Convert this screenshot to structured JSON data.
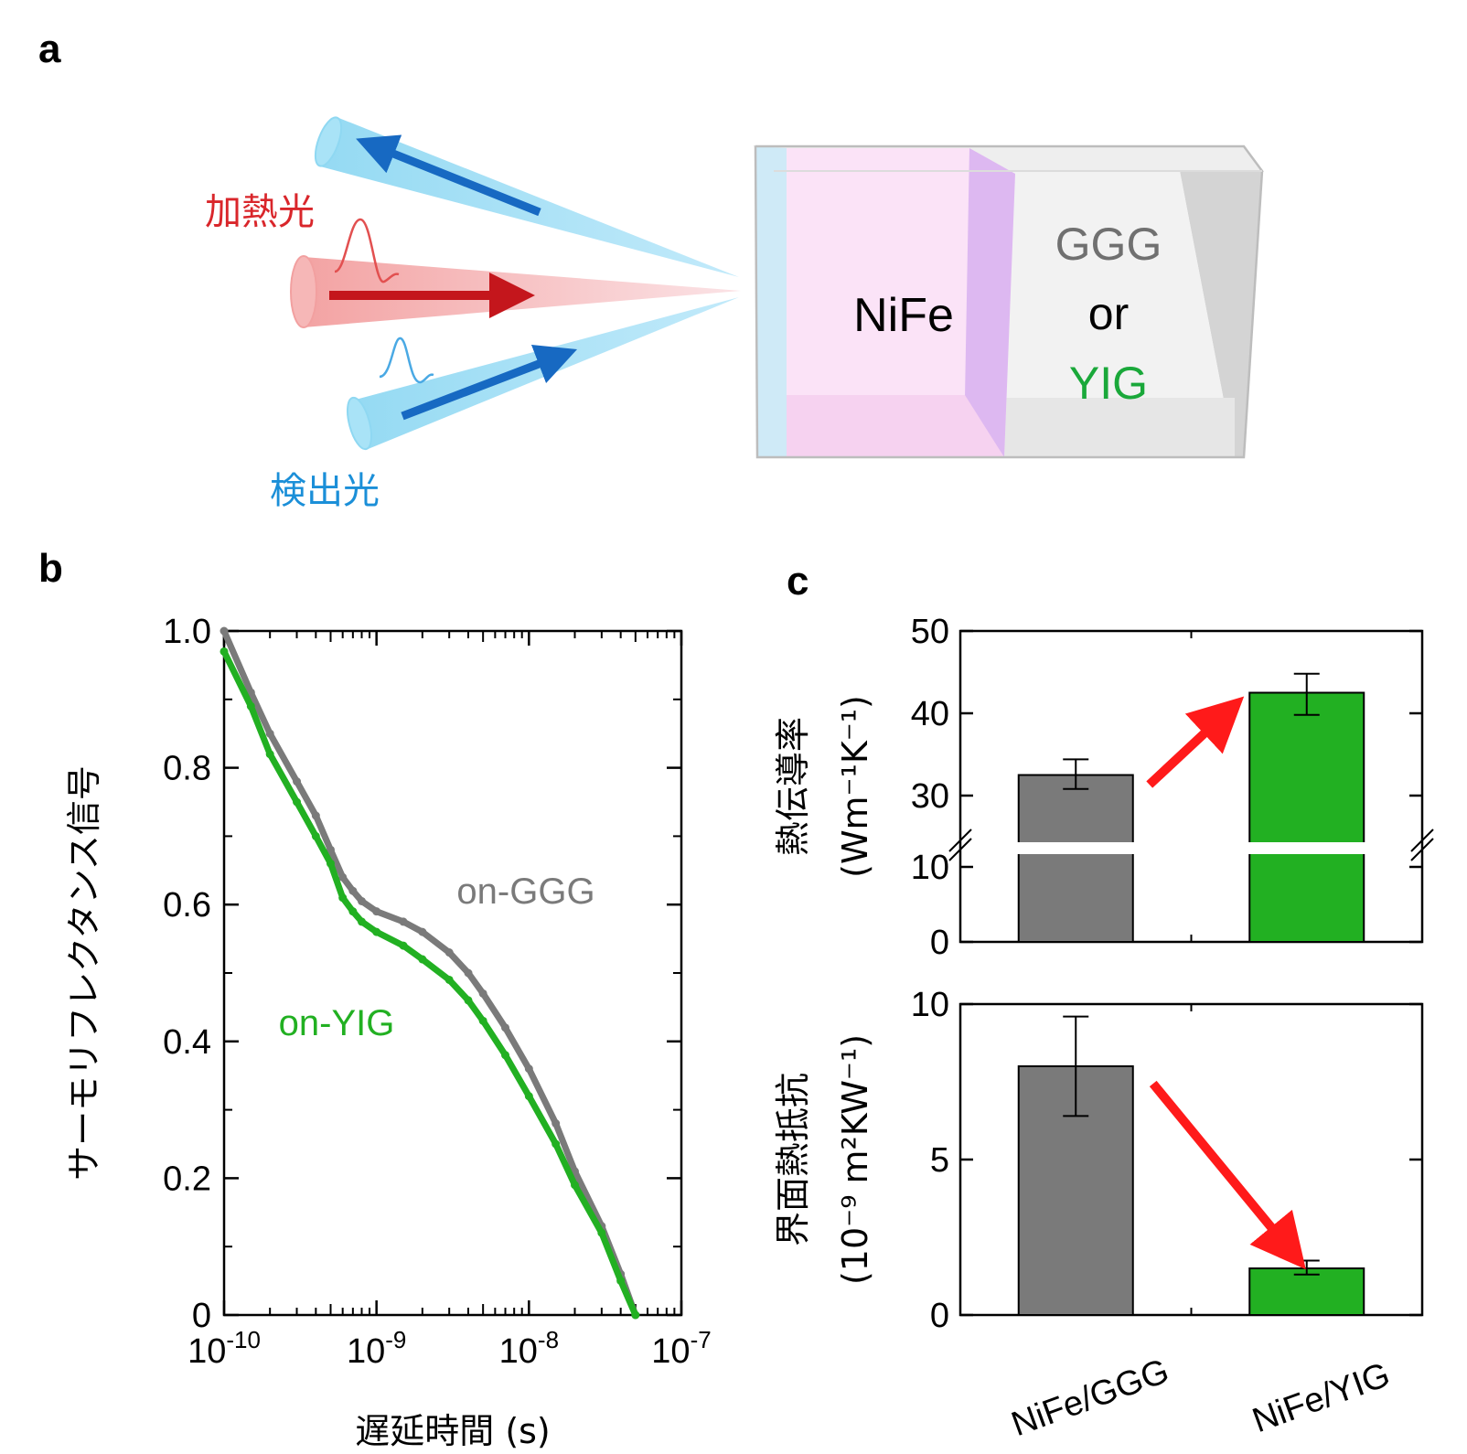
{
  "panels": {
    "a": "a",
    "b": "b",
    "c": "c"
  },
  "schematic": {
    "pump_label": "加熱光",
    "probe_label": "検出光",
    "film_label": "NiFe",
    "substrate_label_1": "GGG",
    "substrate_label_or": "or",
    "substrate_label_2": "YIG",
    "colors": {
      "pump": "#d9262b",
      "probe": "#1b8fd8",
      "yig": "#1aa83a",
      "ggg": "#707070"
    }
  },
  "chart_data": [
    {
      "id": "b",
      "type": "scatter",
      "xscale": "log",
      "xlim": [
        1e-10,
        1e-07
      ],
      "ylim": [
        0,
        1.0
      ],
      "xlabel": "遅延時間 (s)",
      "ylabel": "サーモリフレクタンス信号",
      "xticks": [
        {
          "base": "10",
          "exp": "-10"
        },
        {
          "base": "10",
          "exp": "-9"
        },
        {
          "base": "10",
          "exp": "-8"
        },
        {
          "base": "10",
          "exp": "-7"
        }
      ],
      "yticks": [
        "0",
        "0.2",
        "0.4",
        "0.6",
        "0.8",
        "1.0"
      ],
      "series": [
        {
          "name": "on-GGG",
          "color": "#7a7a7a",
          "x": [
            1e-10,
            1.5e-10,
            2e-10,
            3e-10,
            4e-10,
            5e-10,
            6e-10,
            7e-10,
            8e-10,
            1e-09,
            1.5e-09,
            2e-09,
            3e-09,
            4e-09,
            5e-09,
            7e-09,
            1e-08,
            1.5e-08,
            2e-08,
            3e-08,
            4e-08,
            5e-08
          ],
          "y": [
            1.0,
            0.91,
            0.85,
            0.78,
            0.73,
            0.68,
            0.64,
            0.62,
            0.605,
            0.59,
            0.575,
            0.56,
            0.53,
            0.5,
            0.47,
            0.42,
            0.36,
            0.28,
            0.21,
            0.13,
            0.06,
            0.0
          ]
        },
        {
          "name": "on-YIG",
          "color": "#22b022",
          "x": [
            1e-10,
            1.5e-10,
            2e-10,
            3e-10,
            4e-10,
            5e-10,
            6e-10,
            7e-10,
            8e-10,
            1e-09,
            1.5e-09,
            2e-09,
            3e-09,
            4e-09,
            5e-09,
            7e-09,
            1e-08,
            1.5e-08,
            2e-08,
            3e-08,
            4e-08,
            5e-08
          ],
          "y": [
            0.97,
            0.89,
            0.82,
            0.75,
            0.7,
            0.66,
            0.61,
            0.59,
            0.575,
            0.56,
            0.54,
            0.52,
            0.49,
            0.46,
            0.43,
            0.38,
            0.32,
            0.25,
            0.19,
            0.12,
            0.05,
            0.0
          ]
        }
      ],
      "annotations": [
        {
          "text": "on-GGG",
          "color": "#7a7a7a"
        },
        {
          "text": "on-YIG",
          "color": "#22b022"
        }
      ]
    },
    {
      "id": "c-top",
      "type": "bar",
      "categories": [
        "NiFe/GGG",
        "NiFe/YIG"
      ],
      "values": [
        32.5,
        42.5
      ],
      "errors": [
        [
          30.8,
          34.4
        ],
        [
          39.8,
          44.8
        ]
      ],
      "colors": [
        "#7a7a7a",
        "#22b022"
      ],
      "ylabel_1": "熱伝導率",
      "ylabel_2": "(Wm⁻¹K⁻¹)",
      "ylim": [
        0,
        50
      ],
      "axis_break": [
        10,
        25
      ],
      "yticks": [
        "0",
        "10",
        "30",
        "40",
        "50"
      ]
    },
    {
      "id": "c-bottom",
      "type": "bar",
      "categories": [
        "NiFe/GGG",
        "NiFe/YIG"
      ],
      "values": [
        8.0,
        1.5
      ],
      "errors": [
        [
          6.4,
          9.6
        ],
        [
          1.3,
          1.75
        ]
      ],
      "colors": [
        "#7a7a7a",
        "#22b022"
      ],
      "ylabel_1": "界面熱抵抗",
      "ylabel_2": "(10⁻⁹ m²KW⁻¹)",
      "ylim": [
        0,
        10
      ],
      "yticks": [
        "0",
        "5",
        "10"
      ],
      "xticklabels": [
        "NiFe/GGG",
        "NiFe/YIG"
      ]
    }
  ]
}
